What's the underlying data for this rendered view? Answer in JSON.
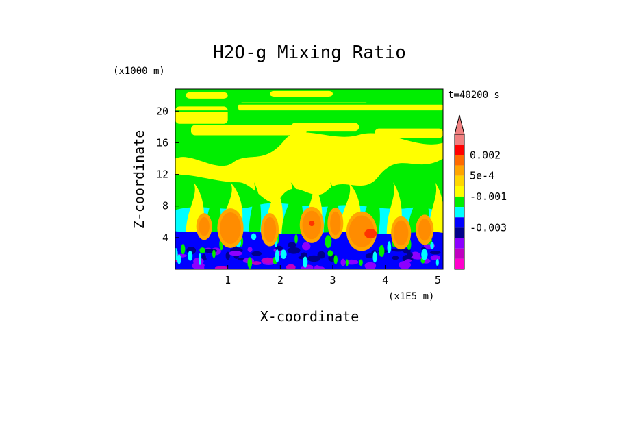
{
  "chart_data": {
    "type": "heatmap",
    "title": "H2O-g Mixing Ratio",
    "xlabel": "X-coordinate",
    "ylabel": "Z-coordinate",
    "x_unit": "(x1E5 m)",
    "y_unit": "(x1000 m)",
    "time_label": "t=40200 s",
    "xlim": [
      0,
      5.1
    ],
    "ylim": [
      0,
      22.8
    ],
    "x_ticks": [
      1,
      2,
      3,
      4,
      5
    ],
    "y_ticks": [
      4,
      8,
      12,
      16,
      20
    ],
    "colorbar": {
      "levels_labeled": [
        "0.002",
        "5e-4",
        "-0.001",
        "-0.003"
      ],
      "colors": [
        "#f08080",
        "#ff0000",
        "#ff6a00",
        "#ffa500",
        "#ffd700",
        "#ffff00",
        "#00ee00",
        "#00ffff",
        "#0000ff",
        "#00008b",
        "#8b00ff",
        "#c000c0",
        "#ff00cc"
      ],
      "extend": "max"
    },
    "regions": [
      {
        "name": "upper band green",
        "zmin": 18.5,
        "zmax": 22.8,
        "color": "#00ee00"
      },
      {
        "name": "mid yellow mass",
        "zmin": 8,
        "zmax": 18,
        "color": "#ffff00"
      },
      {
        "name": "cyan layer",
        "zmin": 4.5,
        "zmax": 8,
        "color": "#00ffff"
      },
      {
        "name": "low blue layer",
        "zmin": 0,
        "zmax": 4.5,
        "color": "#0000ff"
      }
    ]
  }
}
